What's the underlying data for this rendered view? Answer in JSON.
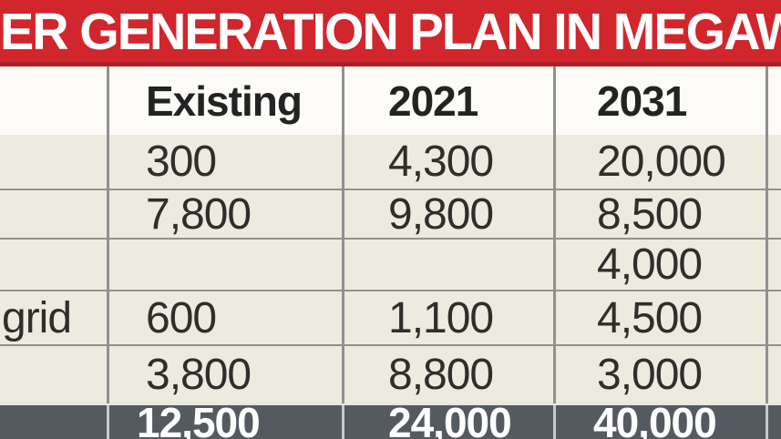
{
  "title": {
    "text": "ER GENERATION PLAN IN MEGAW"
  },
  "colors": {
    "banner_red": "#d1262c",
    "banner_red_dark": "#ab2027",
    "row_beige": "#edebe0",
    "total_row_gray": "#545a60"
  },
  "chart_data": {
    "type": "table",
    "title": "ER GENERATION PLAN IN MEGAW",
    "columns": [
      "",
      "Existing",
      "2021",
      "2031"
    ],
    "rows": [
      {
        "label": "",
        "existing": "300",
        "y2021": "4,300",
        "y2031": "20,000"
      },
      {
        "label": "",
        "existing": "7,800",
        "y2021": "9,800",
        "y2031": "8,500"
      },
      {
        "label": "",
        "existing": "",
        "y2021": "",
        "y2031": "4,000"
      },
      {
        "label": "grid",
        "existing": "600",
        "y2021": "1,100",
        "y2031": "4,500"
      },
      {
        "label": "",
        "existing": "3,800",
        "y2021": "8,800",
        "y2031": "3,000"
      }
    ],
    "total": {
      "label": "",
      "existing": "12,500",
      "y2021": "24,000",
      "y2031": "40,000"
    }
  },
  "table": {
    "columns": [
      {
        "label": ""
      },
      {
        "label": "Existing"
      },
      {
        "label": "2021"
      },
      {
        "label": "2031"
      }
    ],
    "rows": [
      {
        "label": "",
        "existing": "300",
        "y2021": "4,300",
        "y2031": "20,000"
      },
      {
        "label": "",
        "existing": "7,800",
        "y2021": "9,800",
        "y2031": "8,500"
      },
      {
        "label": "",
        "existing": "",
        "y2021": "",
        "y2031": "4,000"
      },
      {
        "label": "grid",
        "existing": "600",
        "y2021": "1,100",
        "y2031": "4,500"
      },
      {
        "label": "",
        "existing": "3,800",
        "y2021": "8,800",
        "y2031": "3,000"
      }
    ],
    "total": {
      "label": "",
      "existing": "12,500",
      "y2021": "24,000",
      "y2031": "40,000"
    }
  }
}
